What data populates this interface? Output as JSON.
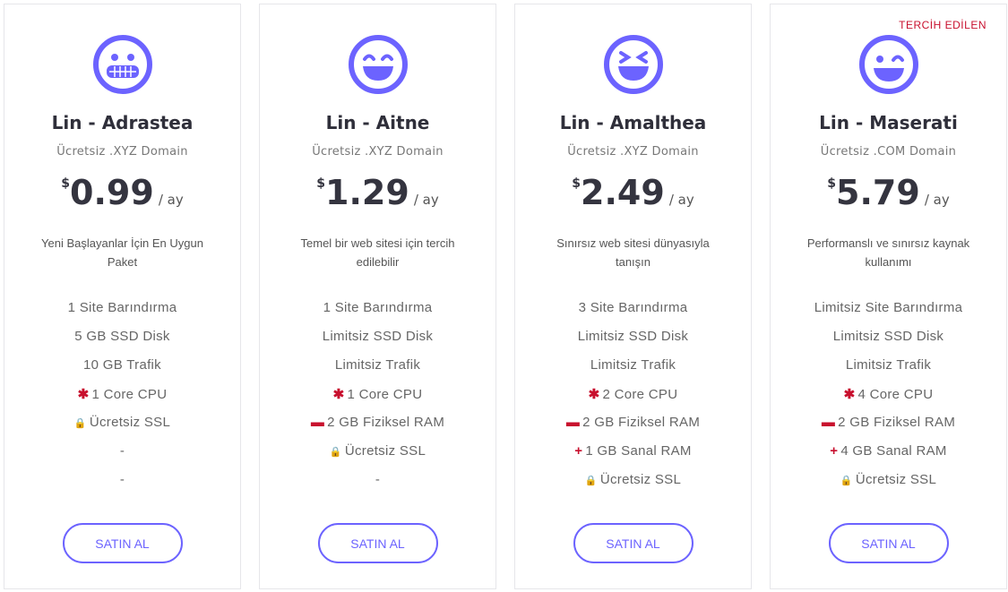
{
  "accent": "#6c63ff",
  "highlight": "#c8102e",
  "plans": [
    {
      "icon": "grimace-face-icon",
      "title": "Lin - Adrastea",
      "domain": "Ücretsiz .XYZ Domain",
      "currency": "$",
      "price": "0.99",
      "period": "/ ay",
      "description": "Yeni Başlayanlar İçin En Uygun Paket",
      "features": [
        {
          "icon": "",
          "text": "1 Site Barındırma"
        },
        {
          "icon": "",
          "text": "5 GB SSD Disk"
        },
        {
          "icon": "",
          "text": "10 GB Trafik"
        },
        {
          "icon": "cpu-asterisk-icon",
          "text": "1 Core CPU"
        },
        {
          "icon": "ssl-lock-icon",
          "text": "Ücretsiz SSL"
        },
        {
          "icon": "",
          "text": "-"
        },
        {
          "icon": "",
          "text": "-"
        }
      ],
      "button": "SATIN AL"
    },
    {
      "icon": "grin-face-icon",
      "title": "Lin - Aitne",
      "domain": "Ücretsiz .XYZ Domain",
      "currency": "$",
      "price": "1.29",
      "period": "/ ay",
      "description": "Temel bir web sitesi için tercih edilebilir",
      "features": [
        {
          "icon": "",
          "text": "1 Site Barındırma"
        },
        {
          "icon": "",
          "text": "Limitsiz SSD Disk"
        },
        {
          "icon": "",
          "text": "Limitsiz Trafik"
        },
        {
          "icon": "cpu-asterisk-icon",
          "text": "1 Core CPU"
        },
        {
          "icon": "ram-memory-icon",
          "text": "2 GB Fiziksel RAM"
        },
        {
          "icon": "ssl-lock-icon",
          "text": "Ücretsiz SSL"
        },
        {
          "icon": "",
          "text": "-"
        }
      ],
      "button": "SATIN AL"
    },
    {
      "icon": "laughing-squint-face-icon",
      "title": "Lin - Amalthea",
      "domain": "Ücretsiz .XYZ Domain",
      "currency": "$",
      "price": "2.49",
      "period": "/ ay",
      "description": "Sınırsız web sitesi dünyasıyla tanışın",
      "features": [
        {
          "icon": "",
          "text": "3 Site Barındırma"
        },
        {
          "icon": "",
          "text": "Limitsiz SSD Disk"
        },
        {
          "icon": "",
          "text": "Limitsiz Trafik"
        },
        {
          "icon": "cpu-asterisk-icon",
          "text": "2 Core CPU"
        },
        {
          "icon": "ram-memory-icon",
          "text": "2 GB Fiziksel RAM"
        },
        {
          "icon": "plus-icon",
          "text": "1 GB Sanal RAM"
        },
        {
          "icon": "ssl-lock-icon",
          "text": "Ücretsiz SSL"
        }
      ],
      "button": "SATIN AL"
    },
    {
      "icon": "wink-face-icon",
      "badge": "TERCİH EDİLEN",
      "title": "Lin - Maserati",
      "domain": "Ücretsiz .COM Domain",
      "currency": "$",
      "price": "5.79",
      "period": "/ ay",
      "description": "Performanslı ve sınırsız kaynak kullanımı",
      "features": [
        {
          "icon": "",
          "text": "Limitsiz Site Barındırma"
        },
        {
          "icon": "",
          "text": "Limitsiz SSD Disk"
        },
        {
          "icon": "",
          "text": "Limitsiz Trafik"
        },
        {
          "icon": "cpu-asterisk-icon",
          "text": "4 Core CPU"
        },
        {
          "icon": "ram-memory-icon",
          "text": "2 GB Fiziksel RAM"
        },
        {
          "icon": "plus-icon",
          "text": "4 GB Sanal RAM"
        },
        {
          "icon": "ssl-lock-icon",
          "text": "Ücretsiz SSL"
        }
      ],
      "button": "SATIN AL"
    }
  ]
}
